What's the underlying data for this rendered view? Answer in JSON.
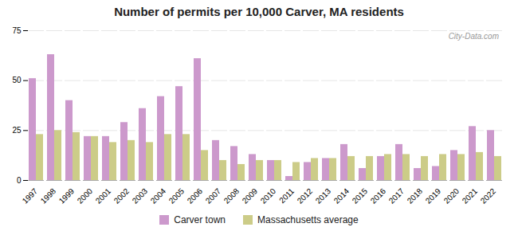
{
  "chart_data": {
    "type": "bar",
    "title": "Number of permits per 10,000 Carver, MA residents",
    "categories": [
      "1997",
      "1998",
      "1999",
      "2000",
      "2001",
      "2002",
      "2003",
      "2004",
      "2005",
      "2006",
      "2007",
      "2008",
      "2009",
      "2010",
      "2011",
      "2012",
      "2013",
      "2014",
      "2015",
      "2016",
      "2017",
      "2018",
      "2019",
      "2020",
      "2021",
      "2022"
    ],
    "series": [
      {
        "name": "Carver town",
        "color": "#cc99cc",
        "values": [
          51,
          63,
          40,
          22,
          22,
          29,
          36,
          42,
          47,
          61,
          20,
          17,
          13,
          10,
          2,
          9,
          11,
          18,
          6,
          12,
          18,
          6,
          7,
          15,
          27,
          25
        ]
      },
      {
        "name": "Massachusetts average",
        "color": "#cccc88",
        "values": [
          23,
          25,
          24,
          22,
          19,
          20,
          19,
          23,
          23,
          15,
          10,
          8,
          10,
          10,
          9,
          11,
          11,
          12,
          12,
          13,
          13,
          12,
          13,
          13,
          14,
          12
        ]
      }
    ],
    "annotations": [
      "City-Data.com"
    ],
    "ylim": [
      0,
      75
    ],
    "yticks": [
      0,
      25,
      50,
      75
    ],
    "grid": true
  }
}
